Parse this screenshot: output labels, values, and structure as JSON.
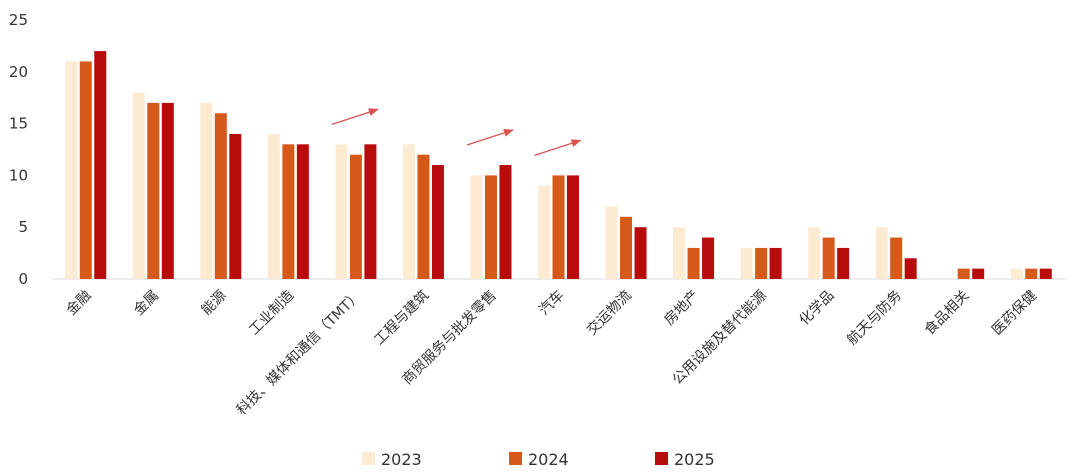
{
  "chart_data": {
    "type": "bar",
    "title": "",
    "xlabel": "",
    "ylabel": "",
    "ylim": [
      0,
      25
    ],
    "yticks": [
      0,
      5,
      10,
      15,
      20,
      25
    ],
    "grid": false,
    "legend_position": "bottom",
    "categories": [
      "金融",
      "金属",
      "能源",
      "工业制造",
      "科技、媒体和通信（TMT）",
      "工程与建筑",
      "商贸服务与批发零售",
      "汽车",
      "交运物流",
      "房地产",
      "公用设施及替代能源",
      "化学品",
      "航天与防务",
      "食品相关",
      "医药保健"
    ],
    "series": [
      {
        "name": "2023",
        "color": "#FCEBD2",
        "values": [
          21,
          18,
          17,
          14,
          13,
          13,
          10,
          9,
          7,
          5,
          3,
          5,
          5,
          0,
          1
        ]
      },
      {
        "name": "2024",
        "color": "#D55A1A",
        "values": [
          21,
          17,
          16,
          13,
          12,
          12,
          10,
          10,
          6,
          3,
          3,
          4,
          4,
          1,
          1
        ]
      },
      {
        "name": "2025",
        "color": "#B80B0B",
        "values": [
          22,
          17,
          14,
          13,
          13,
          11,
          11,
          10,
          5,
          4,
          3,
          3,
          2,
          1,
          1
        ]
      }
    ],
    "annotations": [
      {
        "type": "upward-arrow",
        "color": "#D9534F",
        "category": "科技、媒体和通信（TMT）"
      },
      {
        "type": "upward-arrow",
        "color": "#D9534F",
        "category": "商贸服务与批发零售"
      },
      {
        "type": "upward-arrow",
        "color": "#D9534F",
        "category": "汽车"
      }
    ]
  }
}
